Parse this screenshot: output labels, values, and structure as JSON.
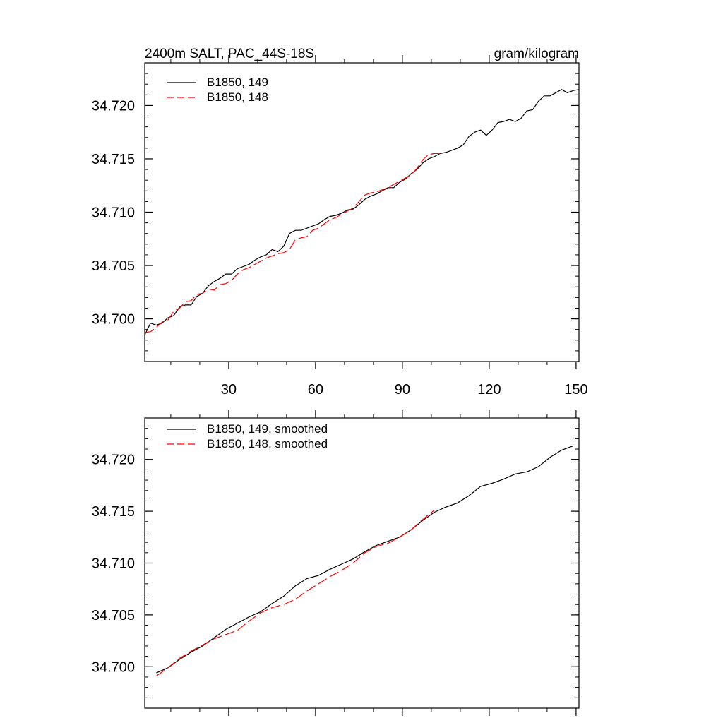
{
  "chart_data": [
    {
      "type": "line",
      "title_left": "2400m SALT, PAC_44S-18S",
      "title_right": "gram/kilogram",
      "xlabel": "",
      "ylabel": "",
      "xlim": [
        1,
        151
      ],
      "ylim": [
        34.696,
        34.724
      ],
      "x_ticks": [
        30,
        60,
        90,
        120,
        150
      ],
      "y_ticks": [
        34.7,
        34.705,
        34.71,
        34.715,
        34.72
      ],
      "y_tick_labels": [
        "34.700",
        "34.705",
        "34.710",
        "34.715",
        "34.720"
      ],
      "x_tick_labels": [
        "30",
        "60",
        "90",
        "120",
        "150"
      ],
      "legend_position": "top-left",
      "series": [
        {
          "name": "B1850, 149",
          "color": "#000000",
          "dash": "solid",
          "x": [
            1,
            3,
            5,
            7,
            9,
            11,
            13,
            15,
            17,
            19,
            21,
            23,
            25,
            27,
            29,
            31,
            33,
            35,
            37,
            39,
            41,
            43,
            45,
            47,
            49,
            51,
            53,
            55,
            57,
            59,
            61,
            63,
            65,
            67,
            69,
            71,
            73,
            75,
            77,
            79,
            81,
            83,
            85,
            87,
            89,
            91,
            93,
            95,
            97,
            99,
            101,
            103,
            105,
            107,
            109,
            111,
            113,
            115,
            117,
            119,
            121,
            123,
            125,
            127,
            129,
            131,
            133,
            135,
            137,
            139,
            141,
            143,
            145,
            147,
            149,
            151
          ],
          "y": [
            34.6985,
            34.6996,
            34.6994,
            34.6996,
            34.7001,
            34.7003,
            34.7011,
            34.7013,
            34.7013,
            34.7021,
            34.7024,
            34.7031,
            34.7035,
            34.7038,
            34.7042,
            34.7042,
            34.7047,
            34.7049,
            34.7051,
            34.7055,
            34.7058,
            34.706,
            34.7065,
            34.7063,
            34.7068,
            34.708,
            34.7083,
            34.7083,
            34.7085,
            34.7087,
            34.7089,
            34.7093,
            34.7096,
            34.7097,
            34.7099,
            34.7102,
            34.7103,
            34.7107,
            34.7112,
            34.7115,
            34.7117,
            34.712,
            34.7123,
            34.7123,
            34.7128,
            34.7131,
            34.7136,
            34.714,
            34.7146,
            34.715,
            34.7152,
            34.7155,
            34.7156,
            34.7158,
            34.716,
            34.7163,
            34.7171,
            34.7175,
            34.7177,
            34.7172,
            34.7177,
            34.7184,
            34.7185,
            34.7187,
            34.7185,
            34.7188,
            34.7195,
            34.7196,
            34.7204,
            34.7209,
            34.7209,
            34.7212,
            34.7215,
            34.7212,
            34.7214,
            34.7215
          ]
        },
        {
          "name": "B1850, 148",
          "color": "#ff0000",
          "dash": "dashed",
          "x": [
            1,
            3,
            5,
            7,
            9,
            11,
            13,
            15,
            17,
            19,
            21,
            23,
            25,
            27,
            29,
            31,
            33,
            35,
            37,
            39,
            41,
            43,
            45,
            47,
            49,
            51,
            53,
            55,
            57,
            59,
            61,
            63,
            65,
            67,
            69,
            71,
            73,
            75,
            77,
            79,
            81,
            83,
            85,
            87,
            89,
            91,
            93,
            95,
            97,
            99,
            101,
            103
          ],
          "y": [
            34.6987,
            34.6988,
            34.6992,
            34.6997,
            34.6999,
            34.7007,
            34.701,
            34.7016,
            34.7017,
            34.7023,
            34.7024,
            34.7028,
            34.7027,
            34.7032,
            34.7033,
            34.7036,
            34.7042,
            34.7046,
            34.7048,
            34.7051,
            34.7054,
            34.7057,
            34.7059,
            34.7061,
            34.7062,
            34.7065,
            34.7074,
            34.7076,
            34.7077,
            34.7083,
            34.7085,
            34.7089,
            34.7093,
            34.7095,
            34.7098,
            34.7101,
            34.7104,
            34.711,
            34.7116,
            34.7118,
            34.7119,
            34.7121,
            34.7123,
            34.7126,
            34.7129,
            34.7132,
            34.7135,
            34.7141,
            34.7149,
            34.7154,
            34.7155,
            34.7155
          ]
        }
      ]
    },
    {
      "type": "line",
      "xlabel": "",
      "ylabel": "",
      "xlim": [
        1,
        151
      ],
      "ylim": [
        34.696,
        34.724
      ],
      "x_ticks": [
        30,
        60,
        90,
        120,
        150
      ],
      "y_ticks": [
        34.7,
        34.705,
        34.71,
        34.715,
        34.72
      ],
      "y_tick_labels": [
        "34.700",
        "34.705",
        "34.710",
        "34.715",
        "34.720"
      ],
      "legend_position": "top-left",
      "series": [
        {
          "name": "B1850, 149, smoothed",
          "color": "#000000",
          "dash": "solid",
          "x": [
            5,
            9,
            13,
            17,
            21,
            25,
            29,
            33,
            37,
            41,
            45,
            49,
            53,
            57,
            61,
            65,
            69,
            73,
            77,
            81,
            85,
            89,
            93,
            97,
            101,
            105,
            109,
            113,
            117,
            121,
            125,
            129,
            133,
            137,
            141,
            145,
            149
          ],
          "y": [
            34.6994,
            34.6999,
            34.7007,
            34.7014,
            34.702,
            34.7028,
            34.7036,
            34.7042,
            34.7048,
            34.7053,
            34.7061,
            34.7068,
            34.7078,
            34.7085,
            34.7088,
            34.7094,
            34.7099,
            34.7104,
            34.7111,
            34.7117,
            34.7121,
            34.7125,
            34.7132,
            34.7141,
            34.7149,
            34.7154,
            34.7158,
            34.7165,
            34.7174,
            34.7177,
            34.7181,
            34.7186,
            34.7188,
            34.7193,
            34.7202,
            34.7209,
            34.7213
          ]
        },
        {
          "name": "B1850, 148, smoothed",
          "color": "#ff0000",
          "dash": "dashed",
          "x": [
            5,
            9,
            13,
            17,
            21,
            25,
            29,
            33,
            37,
            41,
            45,
            49,
            53,
            57,
            61,
            65,
            69,
            73,
            77,
            81,
            85,
            89,
            93,
            97,
            101
          ],
          "y": [
            34.6991,
            34.6999,
            34.7008,
            34.7015,
            34.7021,
            34.7027,
            34.7031,
            34.7035,
            34.7044,
            34.7052,
            34.7057,
            34.706,
            34.7065,
            34.7073,
            34.708,
            34.7087,
            34.7093,
            34.71,
            34.711,
            34.7116,
            34.7119,
            34.7125,
            34.7132,
            34.7142,
            34.7151
          ]
        }
      ]
    }
  ]
}
